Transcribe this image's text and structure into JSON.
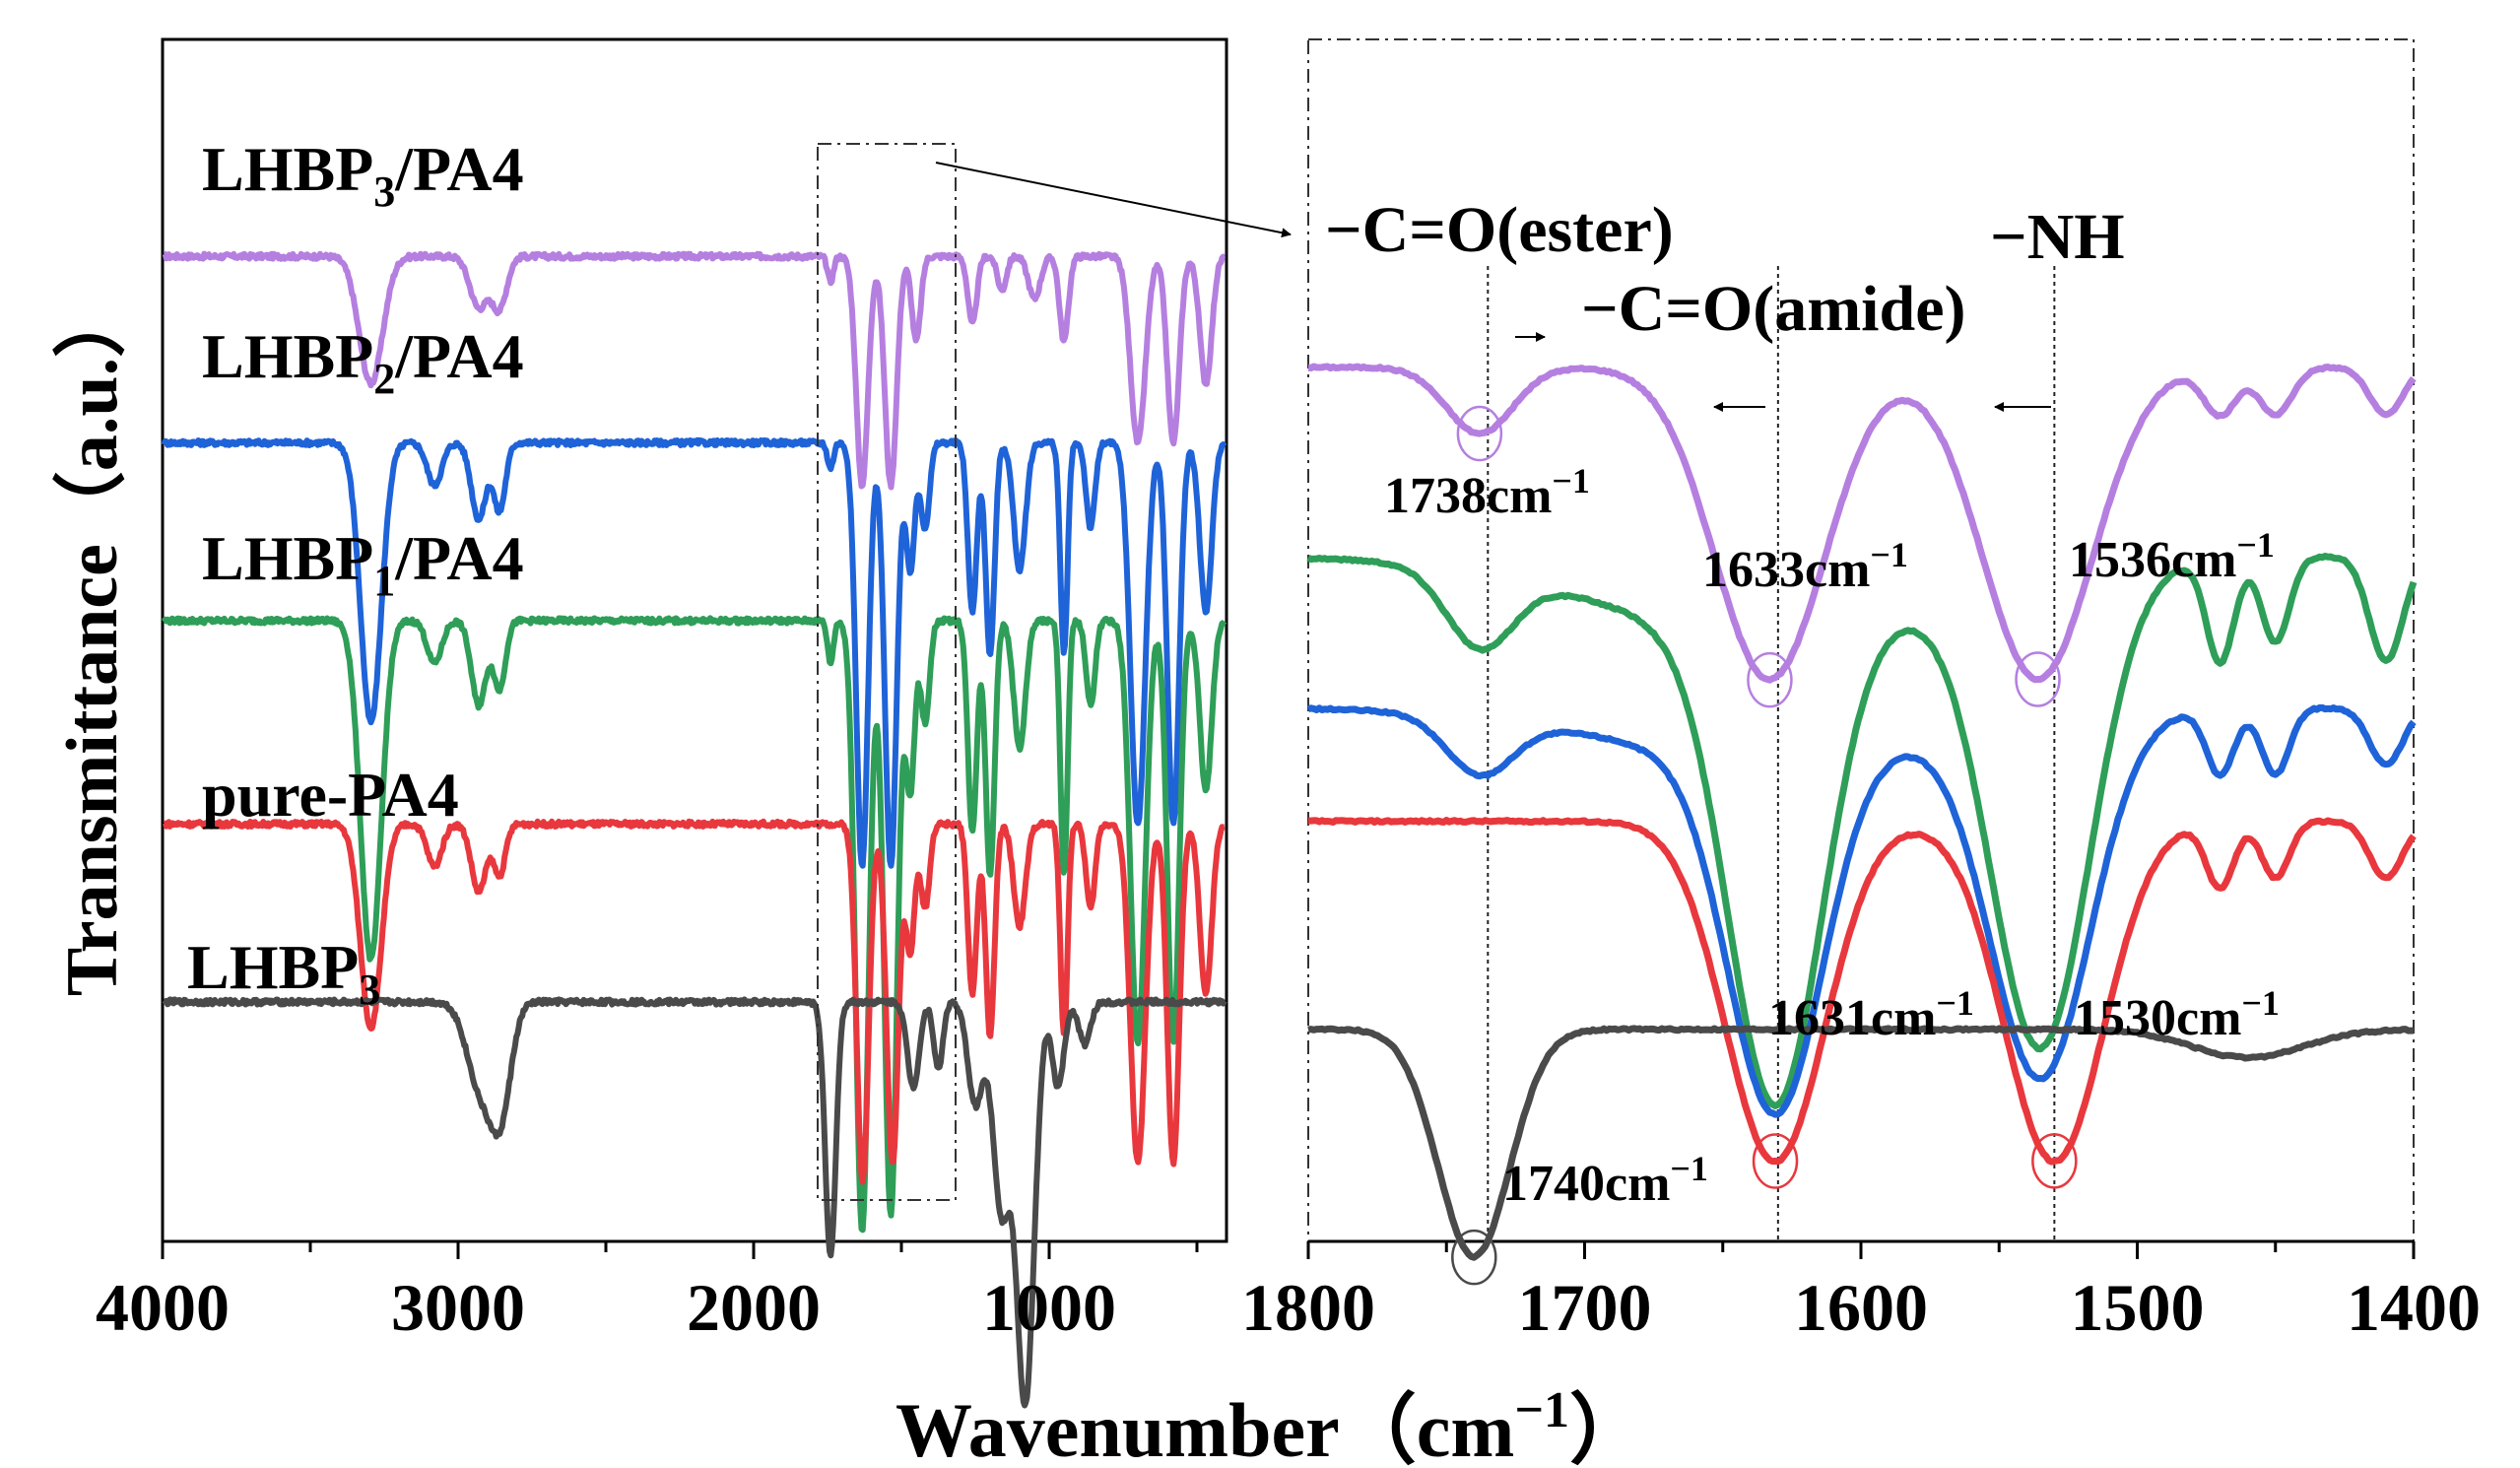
{
  "y_axis_label": "Transmittance（a.u.）",
  "x_axis_label_text": "Wavenumber（cm",
  "x_axis_label_sup": "−1",
  "x_axis_label_close": "）",
  "colors": {
    "LHBP3/PA4": "#b57fe0",
    "LHBP2/PA4": "#1f63d8",
    "LHBP1/PA4": "#2f9e58",
    "pure-PA4": "#e8383d",
    "LHBP3": "#4a4a4a"
  },
  "chart_data": [
    {
      "type": "line",
      "panel": "full spectrum",
      "xlabel": "Wavenumber（cm−1）",
      "ylabel": "Transmittance（a.u.）",
      "xlim": [
        4000,
        400
      ],
      "xticks": [
        "4000",
        "3000",
        "2000",
        "1000"
      ],
      "series": [
        {
          "name": "LHBP3/PA4",
          "label_main": "LHBP",
          "label_sub": "3",
          "label_rest": "/PA4",
          "color": "#b57fe0",
          "baseline": 0.93,
          "peaks": [
            [
              3295,
              0.15,
              40
            ],
            [
              2930,
              0.06,
              30
            ],
            [
              2860,
              0.06,
              25
            ],
            [
              1740,
              0.03,
              10
            ],
            [
              1633,
              0.27,
              20
            ],
            [
              1536,
              0.27,
              20
            ],
            [
              1450,
              0.1,
              15
            ],
            [
              1260,
              0.08,
              15
            ],
            [
              1160,
              0.04,
              15
            ],
            [
              1050,
              0.05,
              20
            ],
            [
              950,
              0.1,
              15
            ],
            [
              700,
              0.22,
              25
            ],
            [
              580,
              0.22,
              20
            ],
            [
              470,
              0.15,
              20
            ]
          ]
        },
        {
          "name": "LHBP2/PA4",
          "label_main": "LHBP",
          "label_sub": "2",
          "label_rest": "/PA4",
          "color": "#1f63d8",
          "baseline": 0.71,
          "peaks": [
            [
              3295,
              0.33,
              35
            ],
            [
              3080,
              0.05,
              25
            ],
            [
              2930,
              0.09,
              25
            ],
            [
              2860,
              0.08,
              20
            ],
            [
              1740,
              0.03,
              10
            ],
            [
              1633,
              0.5,
              20
            ],
            [
              1536,
              0.5,
              20
            ],
            [
              1470,
              0.15,
              15
            ],
            [
              1420,
              0.1,
              15
            ],
            [
              1260,
              0.2,
              15
            ],
            [
              1200,
              0.25,
              15
            ],
            [
              1100,
              0.15,
              20
            ],
            [
              950,
              0.25,
              12
            ],
            [
              860,
              0.1,
              15
            ],
            [
              700,
              0.45,
              25
            ],
            [
              580,
              0.45,
              20
            ],
            [
              470,
              0.2,
              20
            ]
          ]
        },
        {
          "name": "LHBP1/PA4",
          "label_main": "LHBP",
          "label_sub": "1",
          "label_rest": "/PA4",
          "color": "#2f9e58",
          "baseline": 0.5,
          "peaks": [
            [
              3295,
              0.4,
              35
            ],
            [
              3080,
              0.05,
              25
            ],
            [
              2930,
              0.1,
              25
            ],
            [
              2860,
              0.08,
              20
            ],
            [
              1740,
              0.05,
              10
            ],
            [
              1633,
              0.72,
              22
            ],
            [
              1536,
              0.7,
              22
            ],
            [
              1470,
              0.2,
              15
            ],
            [
              1420,
              0.12,
              15
            ],
            [
              1260,
              0.25,
              15
            ],
            [
              1200,
              0.3,
              15
            ],
            [
              1100,
              0.15,
              20
            ],
            [
              950,
              0.3,
              12
            ],
            [
              860,
              0.1,
              15
            ],
            [
              700,
              0.5,
              25
            ],
            [
              580,
              0.5,
              20
            ],
            [
              470,
              0.2,
              20
            ]
          ]
        },
        {
          "name": "pure-PA4",
          "label_main": "pure-PA4",
          "label_sub": "",
          "label_rest": "",
          "color": "#e8383d",
          "baseline": 0.26,
          "peaks": [
            [
              3295,
              0.24,
              35
            ],
            [
              3080,
              0.05,
              25
            ],
            [
              2930,
              0.08,
              25
            ],
            [
              2860,
              0.06,
              20
            ],
            [
              1631,
              0.42,
              20
            ],
            [
              1530,
              0.4,
              20
            ],
            [
              1470,
              0.15,
              15
            ],
            [
              1420,
              0.1,
              15
            ],
            [
              1260,
              0.2,
              15
            ],
            [
              1200,
              0.25,
              15
            ],
            [
              1100,
              0.12,
              20
            ],
            [
              950,
              0.25,
              12
            ],
            [
              860,
              0.1,
              15
            ],
            [
              700,
              0.4,
              25
            ],
            [
              580,
              0.4,
              20
            ],
            [
              470,
              0.2,
              20
            ]
          ]
        },
        {
          "name": "LHBP3",
          "label_main": "LHBP",
          "label_sub": "3",
          "label_rest": "",
          "color": "#4a4a4a",
          "baseline": 0.05,
          "peaks": [
            [
              2925,
              0.1,
              45
            ],
            [
              2855,
              0.12,
              35
            ],
            [
              1740,
              0.3,
              18
            ],
            [
              1460,
              0.1,
              20
            ],
            [
              1375,
              0.08,
              15
            ],
            [
              1250,
              0.12,
              25
            ],
            [
              1160,
              0.25,
              30
            ],
            [
              1090,
              0.35,
              25
            ],
            [
              1060,
              0.2,
              25
            ],
            [
              970,
              0.1,
              20
            ],
            [
              880,
              0.05,
              20
            ]
          ]
        }
      ]
    },
    {
      "type": "line",
      "panel": "zoomed region",
      "xlabel": "Wavenumber（cm−1）",
      "xlim": [
        1800,
        1400
      ],
      "xticks": [
        "1800",
        "1700",
        "1600",
        "1500",
        "1400"
      ],
      "series": [
        {
          "name": "LHBP3/PA4",
          "color": "#b57fe0",
          "baseline": 0.82,
          "peaks": [
            [
              1738,
              0.07,
              12
            ],
            [
              1633,
              0.33,
              20
            ],
            [
              1536,
              0.33,
              20
            ],
            [
              1470,
              0.05,
              6
            ],
            [
              1450,
              0.05,
              6
            ],
            [
              1410,
              0.05,
              6
            ]
          ]
        },
        {
          "name": "LHBP1/PA4",
          "color": "#2f9e58",
          "baseline": 0.62,
          "peaks": [
            [
              1738,
              0.08,
              12
            ],
            [
              1635,
              0.08,
              60
            ],
            [
              1631,
              0.5,
              17
            ],
            [
              1535,
              0.5,
              18
            ],
            [
              1470,
              0.11,
              5
            ],
            [
              1450,
              0.09,
              5
            ],
            [
              1410,
              0.11,
              6
            ]
          ]
        },
        {
          "name": "LHBP2/PA4",
          "color": "#1f63d8",
          "baseline": 0.46,
          "peaks": [
            [
              1738,
              0.06,
              12
            ],
            [
              1635,
              0.05,
              60
            ],
            [
              1631,
              0.38,
              17
            ],
            [
              1535,
              0.38,
              18
            ],
            [
              1470,
              0.07,
              5
            ],
            [
              1450,
              0.07,
              5
            ],
            [
              1410,
              0.06,
              6
            ]
          ]
        },
        {
          "name": "pure-PA4",
          "color": "#e8383d",
          "baseline": 0.34,
          "peaks": [
            [
              1631,
              0.36,
              18
            ],
            [
              1530,
              0.36,
              18
            ],
            [
              1470,
              0.07,
              5
            ],
            [
              1450,
              0.06,
              5
            ],
            [
              1410,
              0.06,
              6
            ]
          ]
        },
        {
          "name": "LHBP3",
          "color": "#4a4a4a",
          "baseline": 0.12,
          "peaks": [
            [
              1740,
              0.24,
              13
            ],
            [
              1460,
              0.03,
              20
            ]
          ]
        }
      ],
      "annotations": [
        {
          "main": "−C=O(ester)",
          "sub": "",
          "sup": ""
        },
        {
          "main": "−C=O(amide)",
          "sub": "",
          "sup": ""
        },
        {
          "main": "−NH",
          "sub": "",
          "sup": ""
        },
        {
          "main": "1738cm",
          "sup": "−1",
          "series": "LHBP3/PA4"
        },
        {
          "main": "1633cm",
          "sup": "−1",
          "series": "LHBP3/PA4"
        },
        {
          "main": "1536cm",
          "sup": "−1",
          "series": "LHBP3/PA4"
        },
        {
          "main": "1631cm",
          "sup": "−1",
          "series": "pure-PA4"
        },
        {
          "main": "1530cm",
          "sup": "−1",
          "series": "pure-PA4"
        },
        {
          "main": "1740cm",
          "sup": "−1",
          "series": "LHBP3"
        }
      ],
      "reference_lines_x": [
        1735,
        1630,
        1530
      ]
    }
  ]
}
